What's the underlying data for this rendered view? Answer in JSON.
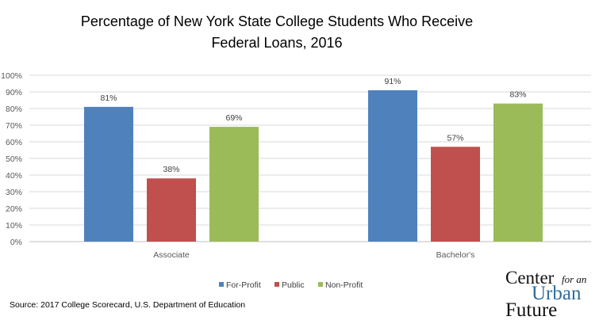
{
  "chart_data": {
    "type": "bar",
    "title": [
      "Percentage of New York State College Students Who Receive",
      "Federal Loans, 2016"
    ],
    "xlabel": "",
    "ylabel": "",
    "ylim": [
      0,
      100
    ],
    "yticks": [
      "0%",
      "10%",
      "20%",
      "30%",
      "40%",
      "50%",
      "60%",
      "70%",
      "80%",
      "90%",
      "100%"
    ],
    "grid": true,
    "categories": [
      "Associate",
      "Bachelor's"
    ],
    "series": [
      {
        "name": "For-Profit",
        "color": "#4F81BD",
        "values": [
          81,
          91
        ],
        "labels": [
          "81%",
          "91%"
        ]
      },
      {
        "name": "Public",
        "color": "#C0504D",
        "values": [
          38,
          57
        ],
        "labels": [
          "38%",
          "57%"
        ]
      },
      {
        "name": "Non-Profit",
        "color": "#9BBB59",
        "values": [
          69,
          83
        ],
        "labels": [
          "69%",
          "83%"
        ]
      }
    ],
    "legend_position": "bottom"
  },
  "source": "Source: 2017 College Scorecard, U.S. Department of Education",
  "logo": {
    "line1": "Center",
    "line1b": "for an",
    "line2": "Urban",
    "line3": "Future"
  }
}
